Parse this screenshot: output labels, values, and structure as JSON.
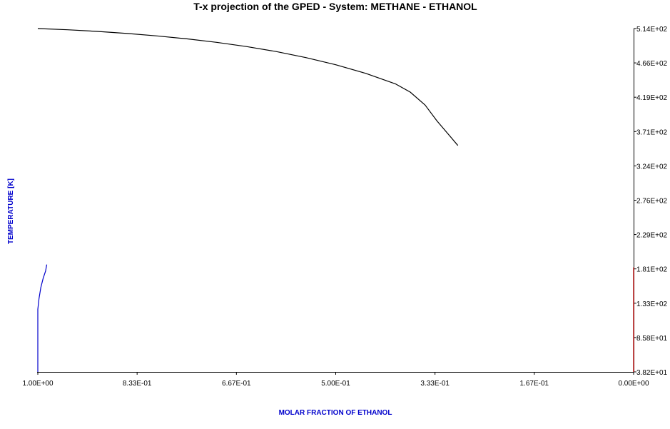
{
  "chart_data": {
    "type": "line",
    "title": "T-x projection of the GPED - System: METHANE - ETHANOL",
    "xlabel": "MOLAR FRACTION OF ETHANOL",
    "ylabel": "TEMPERATURE [K]",
    "x_axis_reversed": true,
    "y_axis_side": "right",
    "xlim": [
      1.0,
      0.0
    ],
    "ylim": [
      38.2,
      514
    ],
    "x_ticks": [
      "1.00E+00",
      "8.33E-01",
      "6.67E-01",
      "5.00E-01",
      "3.33E-01",
      "1.67E-01",
      "0.00E+00"
    ],
    "y_ticks": [
      "5.14E+02",
      "4.66E+02",
      "4.19E+02",
      "3.71E+02",
      "3.24E+02",
      "2.76E+02",
      "2.29E+02",
      "1.81E+02",
      "1.33E+02",
      "8.58E+01",
      "3.82E+01"
    ],
    "grid": false,
    "series": [
      {
        "color": "#000000",
        "points": [
          [
            1.0,
            514.0
          ],
          [
            0.95,
            512.3
          ],
          [
            0.9,
            510.0
          ],
          [
            0.85,
            507.2
          ],
          [
            0.8,
            503.8
          ],
          [
            0.75,
            499.8
          ],
          [
            0.7,
            494.9
          ],
          [
            0.65,
            489.1
          ],
          [
            0.6,
            482.1
          ],
          [
            0.55,
            473.7
          ],
          [
            0.5,
            463.8
          ],
          [
            0.45,
            452.0
          ],
          [
            0.4,
            437.4
          ],
          [
            0.375,
            426.0
          ],
          [
            0.35,
            408.0
          ],
          [
            0.33,
            386.0
          ],
          [
            0.295,
            352.0
          ]
        ]
      },
      {
        "color": "#0000cc",
        "points": [
          [
            1.0,
            38.2
          ],
          [
            1.0,
            125.0
          ],
          [
            0.998,
            140.0
          ],
          [
            0.995,
            155.0
          ],
          [
            0.991,
            168.0
          ],
          [
            0.987,
            178.0
          ],
          [
            0.985,
            187.0
          ]
        ]
      },
      {
        "color": "#cc0000",
        "points": [
          [
            0.0,
            38.2
          ],
          [
            0.0,
            183.0
          ]
        ]
      }
    ]
  }
}
